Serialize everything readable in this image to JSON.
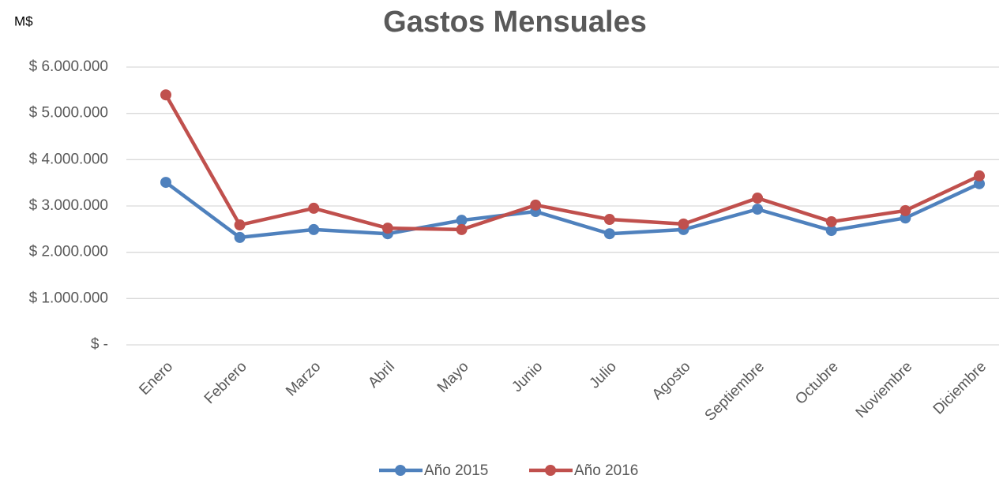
{
  "chart_data": {
    "type": "line",
    "title": "Gastos Mensuales",
    "y_label": "M$",
    "categories": [
      "Enero",
      "Febrero",
      "Marzo",
      "Abril",
      "Mayo",
      "Junio",
      "Julio",
      "Agosto",
      "Septiembre",
      "Octubre",
      "Noviembre",
      "Diciembre"
    ],
    "series": [
      {
        "name": "Año 2015",
        "color": "#4f81bd",
        "values": [
          3510000,
          2320000,
          2490000,
          2400000,
          2690000,
          2880000,
          2400000,
          2490000,
          2930000,
          2470000,
          2740000,
          3480000
        ]
      },
      {
        "name": "Año 2016",
        "color": "#c0504d",
        "values": [
          5400000,
          2590000,
          2950000,
          2520000,
          2490000,
          3020000,
          2710000,
          2610000,
          3170000,
          2660000,
          2900000,
          3650000
        ]
      }
    ],
    "ylim": [
      0,
      6000000
    ],
    "yticks": [
      {
        "value": 0,
        "label": "$ -"
      },
      {
        "value": 1000000,
        "label": "$ 1.000.000"
      },
      {
        "value": 2000000,
        "label": "$ 2.000.000"
      },
      {
        "value": 3000000,
        "label": "$ 3.000.000"
      },
      {
        "value": 4000000,
        "label": "$ 4.000.000"
      },
      {
        "value": 5000000,
        "label": "$ 5.000.000"
      },
      {
        "value": 6000000,
        "label": "$ 6.000.000"
      }
    ],
    "grid": true,
    "legend": "bottom"
  }
}
